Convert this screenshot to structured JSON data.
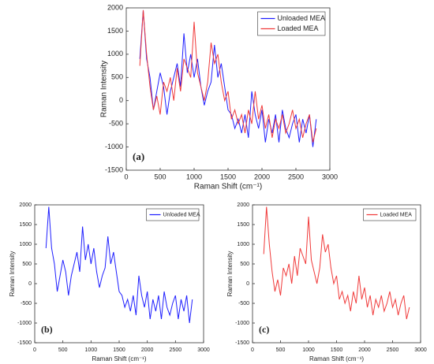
{
  "chart_data": [
    {
      "type": "line",
      "x_label": "Raman Shift (cm⁻¹)",
      "y_label": "Raman Intensity",
      "annotation": "(a)",
      "x": [
        200,
        250,
        300,
        350,
        400,
        450,
        500,
        550,
        600,
        650,
        700,
        750,
        800,
        850,
        900,
        950,
        1000,
        1050,
        1100,
        1150,
        1200,
        1250,
        1300,
        1350,
        1400,
        1450,
        1500,
        1550,
        1600,
        1650,
        1700,
        1750,
        1800,
        1850,
        1900,
        1950,
        2000,
        2050,
        2100,
        2150,
        2200,
        2250,
        2300,
        2350,
        2400,
        2450,
        2500,
        2550,
        2600,
        2650,
        2700,
        2750,
        2800
      ],
      "series": [
        {
          "name": "Unloaded MEA",
          "color": "#1f1fff",
          "values": [
            900,
            1950,
            900,
            500,
            -200,
            200,
            600,
            300,
            -300,
            200,
            500,
            800,
            300,
            1450,
            600,
            1000,
            500,
            900,
            300,
            -100,
            200,
            400,
            1200,
            500,
            800,
            300,
            -200,
            -300,
            -600,
            -400,
            -700,
            -300,
            -800,
            200,
            -300,
            -600,
            -200,
            -900,
            -400,
            -700,
            -300,
            -900,
            -200,
            -600,
            -800,
            -500,
            -300,
            -900,
            -400,
            -700,
            -300,
            -1000,
            -400
          ]
        },
        {
          "name": "Loaded MEA",
          "color": "#f03a3a",
          "values": [
            750,
            1950,
            1000,
            300,
            -200,
            100,
            -300,
            400,
            200,
            500,
            0,
            700,
            200,
            900,
            700,
            500,
            1700,
            600,
            300,
            0,
            400,
            1250,
            800,
            1000,
            400,
            0,
            200,
            -400,
            -200,
            -500,
            -300,
            -700,
            -200,
            -500,
            200,
            -400,
            -100,
            -600,
            -300,
            -800,
            -400,
            -600,
            -300,
            -700,
            -500,
            -200,
            -600,
            -400,
            -800,
            -500,
            -300,
            -900,
            -600
          ]
        }
      ],
      "xlim": [
        0,
        3000
      ],
      "xticks": [
        0,
        500,
        1000,
        1500,
        2000,
        2500,
        3000
      ],
      "ylim": [
        -1500,
        2000
      ],
      "yticks": [
        -1500,
        -1000,
        -500,
        0,
        500,
        1000,
        1500,
        2000
      ],
      "legend": "upper right"
    },
    {
      "type": "line",
      "x_label": "Raman Shift (cm⁻¹)",
      "y_label": "Raman Intensity",
      "annotation": "(b)",
      "x": [
        200,
        250,
        300,
        350,
        400,
        450,
        500,
        550,
        600,
        650,
        700,
        750,
        800,
        850,
        900,
        950,
        1000,
        1050,
        1100,
        1150,
        1200,
        1250,
        1300,
        1350,
        1400,
        1450,
        1500,
        1550,
        1600,
        1650,
        1700,
        1750,
        1800,
        1850,
        1900,
        1950,
        2000,
        2050,
        2100,
        2150,
        2200,
        2250,
        2300,
        2350,
        2400,
        2450,
        2500,
        2550,
        2600,
        2650,
        2700,
        2750,
        2800
      ],
      "series": [
        {
          "name": "Unloaded MEA",
          "color": "#1f1fff",
          "values": [
            900,
            1950,
            900,
            500,
            -200,
            200,
            600,
            300,
            -300,
            200,
            500,
            800,
            300,
            1450,
            600,
            1000,
            500,
            900,
            300,
            -100,
            200,
            400,
            1200,
            500,
            800,
            300,
            -200,
            -300,
            -600,
            -400,
            -700,
            -300,
            -800,
            200,
            -300,
            -600,
            -200,
            -900,
            -400,
            -700,
            -300,
            -900,
            -200,
            -600,
            -800,
            -500,
            -300,
            -900,
            -400,
            -700,
            -300,
            -1000,
            -400
          ]
        }
      ],
      "xlim": [
        0,
        3000
      ],
      "xticks": [
        0,
        500,
        1000,
        1500,
        2000,
        2500,
        3000
      ],
      "ylim": [
        -1500,
        2000
      ],
      "yticks": [
        -1500,
        -1000,
        -500,
        0,
        500,
        1000,
        1500,
        2000
      ],
      "legend": "upper right"
    },
    {
      "type": "line",
      "x_label": "Raman Shift (cm⁻¹)",
      "y_label": "Raman Intensity",
      "annotation": "(c)",
      "x": [
        200,
        250,
        300,
        350,
        400,
        450,
        500,
        550,
        600,
        650,
        700,
        750,
        800,
        850,
        900,
        950,
        1000,
        1050,
        1100,
        1150,
        1200,
        1250,
        1300,
        1350,
        1400,
        1450,
        1500,
        1550,
        1600,
        1650,
        1700,
        1750,
        1800,
        1850,
        1900,
        1950,
        2000,
        2050,
        2100,
        2150,
        2200,
        2250,
        2300,
        2350,
        2400,
        2450,
        2500,
        2550,
        2600,
        2650,
        2700,
        2750,
        2800
      ],
      "series": [
        {
          "name": "Loaded MEA",
          "color": "#f03a3a",
          "values": [
            750,
            1950,
            1000,
            300,
            -200,
            100,
            -300,
            400,
            200,
            500,
            0,
            700,
            200,
            900,
            700,
            500,
            1700,
            600,
            300,
            0,
            400,
            1250,
            800,
            1000,
            400,
            0,
            200,
            -400,
            -200,
            -500,
            -300,
            -700,
            -200,
            -500,
            200,
            -400,
            -100,
            -600,
            -300,
            -800,
            -400,
            -600,
            -300,
            -700,
            -500,
            -200,
            -600,
            -400,
            -800,
            -500,
            -300,
            -900,
            -600
          ]
        }
      ],
      "xlim": [
        0,
        3000
      ],
      "xticks": [
        0,
        500,
        1000,
        1500,
        2000,
        2500,
        3000
      ],
      "ylim": [
        -1500,
        2000
      ],
      "yticks": [
        -1500,
        -1000,
        -500,
        0,
        500,
        1000,
        1500,
        2000
      ],
      "legend": "upper right"
    }
  ]
}
